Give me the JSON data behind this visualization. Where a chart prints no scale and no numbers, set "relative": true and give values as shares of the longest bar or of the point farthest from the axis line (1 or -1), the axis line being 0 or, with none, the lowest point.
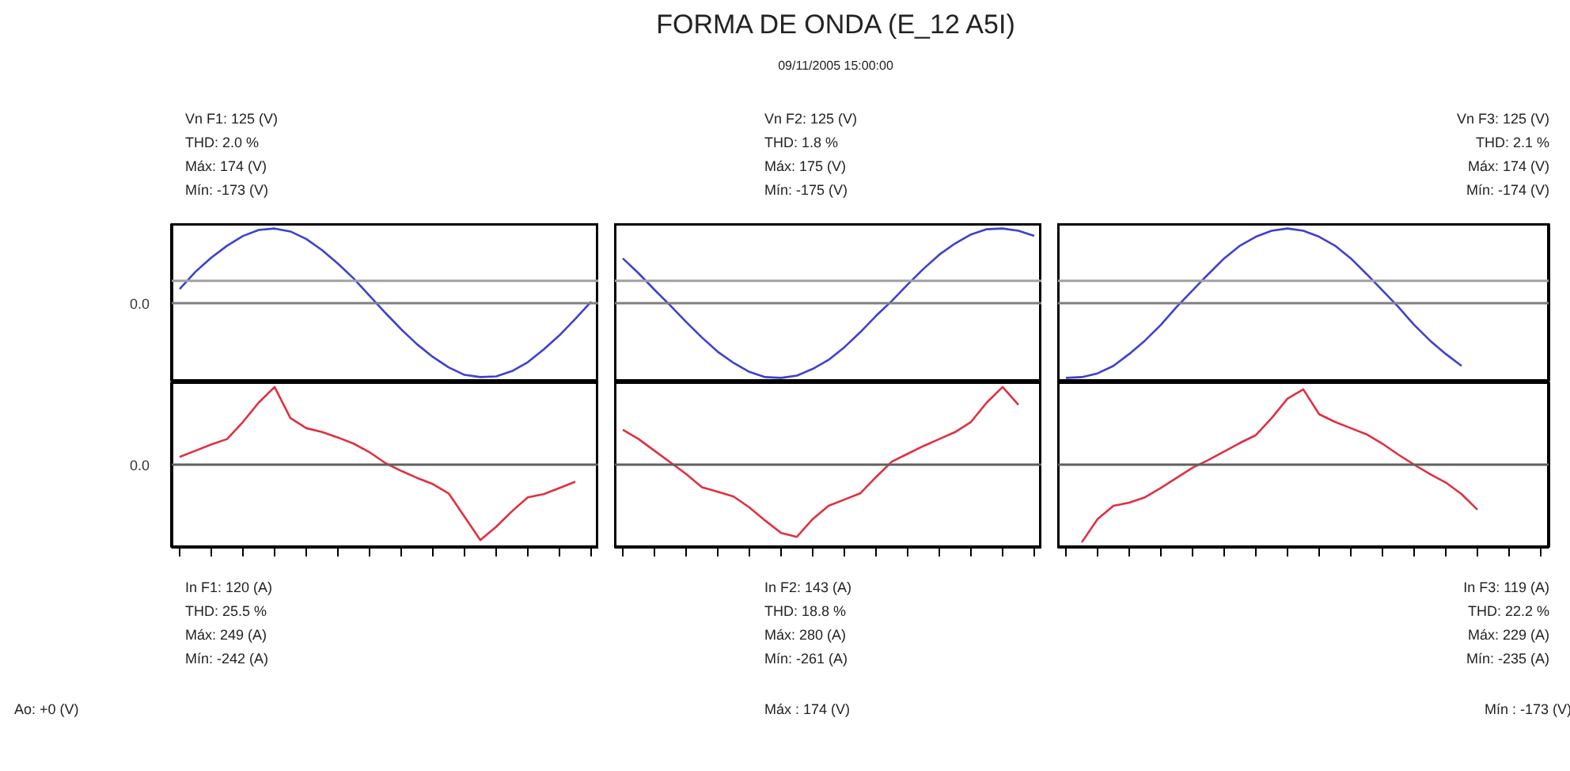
{
  "chart_data": [
    {
      "type": "line",
      "relative": true,
      "tick_labels": false,
      "annotations": [
        "Vn F1: 125 (V)",
        "THD: 2.0 %",
        "Máx: 174 (V)",
        "Mín: -173 (V)"
      ],
      "categories": [
        null,
        null,
        null,
        null,
        null,
        null,
        null,
        null,
        null,
        null,
        null,
        null,
        null,
        null,
        null,
        null,
        null,
        null,
        null,
        null,
        null,
        null,
        null,
        null,
        null,
        null,
        null
      ],
      "series": [
        {
          "color": "#4040d0",
          "values": [
            0.19,
            0.42,
            0.61,
            0.77,
            0.9,
            0.98,
            1.0,
            0.96,
            0.86,
            0.71,
            0.53,
            0.33,
            0.1,
            -0.13,
            -0.35,
            -0.55,
            -0.72,
            -0.86,
            -0.96,
            -0.99,
            -0.98,
            -0.91,
            -0.79,
            -0.62,
            -0.43,
            -0.21,
            0.02
          ]
        }
      ],
      "ref_lines": [
        {
          "axis": "y",
          "value": 0,
          "label": "0.0",
          "color": "#808080"
        },
        {
          "axis": "y",
          "value": 0.3,
          "color": "#a0a0a0"
        }
      ]
    },
    {
      "type": "line",
      "title": "FORMA DE ONDA (E_12 A5I)",
      "subtitle": "09/11/2005 15:00:00",
      "relative": true,
      "tick_labels": false,
      "annotations": [
        "Vn F2: 125 (V)",
        "THD: 1.8 %",
        "Máx: 175 (V)",
        "Mín: -175 (V)"
      ],
      "categories": [
        null,
        null,
        null,
        null,
        null,
        null,
        null,
        null,
        null,
        null,
        null,
        null,
        null,
        null,
        null,
        null,
        null,
        null,
        null,
        null,
        null,
        null,
        null,
        null,
        null,
        null,
        null
      ],
      "series": [
        {
          "color": "#4040d0",
          "values": [
            0.6,
            0.4,
            0.18,
            -0.03,
            -0.25,
            -0.46,
            -0.65,
            -0.8,
            -0.92,
            -0.99,
            -1.0,
            -0.97,
            -0.88,
            -0.76,
            -0.59,
            -0.39,
            -0.17,
            0.03,
            0.25,
            0.46,
            0.65,
            0.8,
            0.92,
            0.99,
            1.0,
            0.97,
            0.9
          ]
        }
      ],
      "ref_lines": [
        {
          "axis": "y",
          "value": 0,
          "color": "#808080"
        },
        {
          "axis": "y",
          "value": 0.3,
          "color": "#a0a0a0"
        }
      ]
    },
    {
      "type": "line",
      "relative": true,
      "tick_labels": false,
      "annotations": [
        "Vn F3: 125 (V)",
        "THD: 2.1 %",
        "Máx: 174 (V)",
        "Mín: -174 (V)"
      ],
      "categories": [
        null,
        null,
        null,
        null,
        null,
        null,
        null,
        null,
        null,
        null,
        null,
        null,
        null,
        null,
        null,
        null,
        null,
        null,
        null,
        null,
        null,
        null,
        null,
        null,
        null,
        null,
        null,
        null,
        null,
        null,
        null
      ],
      "series": [
        {
          "color": "#4040d0",
          "values": [
            -1.0,
            -0.99,
            -0.94,
            -0.84,
            -0.68,
            -0.5,
            -0.29,
            -0.05,
            0.17,
            0.39,
            0.6,
            0.77,
            0.89,
            0.97,
            1.0,
            0.97,
            0.89,
            0.77,
            0.6,
            0.39,
            0.17,
            -0.05,
            -0.29,
            -0.5,
            -0.68,
            -0.84,
            null,
            null,
            null,
            null,
            null
          ]
        }
      ],
      "ref_lines": [
        {
          "axis": "y",
          "value": 0,
          "color": "#808080"
        },
        {
          "axis": "y",
          "value": 0.3,
          "color": "#a0a0a0"
        }
      ]
    },
    {
      "type": "line",
      "relative": true,
      "tick_labels": false,
      "annotations": [
        "In F1: 120 (A)",
        "THD: 25.5 %",
        "Máx: 249 (A)",
        "Mín: -242 (A)",
        "Ao: +0 (V)"
      ],
      "categories": [
        null,
        null,
        null,
        null,
        null,
        null,
        null,
        null,
        null,
        null,
        null,
        null,
        null,
        null,
        null,
        null,
        null,
        null,
        null,
        null,
        null,
        null,
        null,
        null,
        null,
        null,
        null
      ],
      "series": [
        {
          "color": "#e03040",
          "values": [
            0.1,
            0.18,
            0.26,
            0.33,
            0.55,
            0.8,
            1.0,
            0.6,
            0.47,
            0.42,
            0.35,
            0.27,
            0.16,
            0.02,
            -0.08,
            -0.17,
            -0.25,
            -0.37,
            -0.67,
            -0.97,
            -0.8,
            -0.6,
            -0.42,
            -0.38,
            -0.3,
            -0.22,
            null
          ]
        }
      ],
      "ref_lines": [
        {
          "axis": "y",
          "value": 0,
          "label": "0.0",
          "color": "#606060"
        }
      ]
    },
    {
      "type": "line",
      "relative": true,
      "tick_labels": false,
      "annotations": [
        "In F2: 143 (A)",
        "THD: 18.8 %",
        "Máx: 280 (A)",
        "Mín: -261 (A)",
        "Máx : 174 (V)"
      ],
      "categories": [
        null,
        null,
        null,
        null,
        null,
        null,
        null,
        null,
        null,
        null,
        null,
        null,
        null,
        null,
        null,
        null,
        null,
        null,
        null,
        null,
        null,
        null,
        null,
        null,
        null,
        null,
        null
      ],
      "series": [
        {
          "color": "#e03040",
          "values": [
            0.45,
            0.33,
            0.18,
            0.03,
            -0.12,
            -0.29,
            -0.35,
            -0.41,
            -0.55,
            -0.72,
            -0.88,
            -0.93,
            -0.7,
            -0.53,
            -0.45,
            -0.37,
            -0.16,
            0.04,
            0.14,
            0.24,
            0.33,
            0.42,
            0.55,
            0.8,
            1.0,
            0.77,
            null
          ]
        }
      ],
      "ref_lines": [
        {
          "axis": "y",
          "value": 0,
          "color": "#606060"
        }
      ]
    },
    {
      "type": "line",
      "relative": true,
      "tick_labels": false,
      "annotations": [
        "In F3: 119 (A)",
        "THD: 22.2 %",
        "Máx: 229 (A)",
        "Mín: -235 (A)",
        "Mín : -173 (V)"
      ],
      "categories": [
        null,
        null,
        null,
        null,
        null,
        null,
        null,
        null,
        null,
        null,
        null,
        null,
        null,
        null,
        null,
        null,
        null,
        null,
        null,
        null,
        null,
        null,
        null,
        null,
        null,
        null,
        null,
        null,
        null,
        null,
        null
      ],
      "series": [
        {
          "color": "#e03040",
          "values": [
            null,
            -1.0,
            -0.7,
            -0.53,
            -0.49,
            -0.42,
            -0.3,
            -0.17,
            -0.04,
            0.06,
            0.17,
            0.28,
            0.38,
            0.6,
            0.85,
            0.97,
            0.65,
            0.55,
            0.47,
            0.39,
            0.27,
            0.13,
            0.0,
            -0.12,
            -0.23,
            -0.38,
            -0.58,
            null,
            null,
            null,
            null
          ]
        }
      ],
      "ref_lines": [
        {
          "axis": "y",
          "value": 0,
          "color": "#606060"
        }
      ]
    }
  ]
}
